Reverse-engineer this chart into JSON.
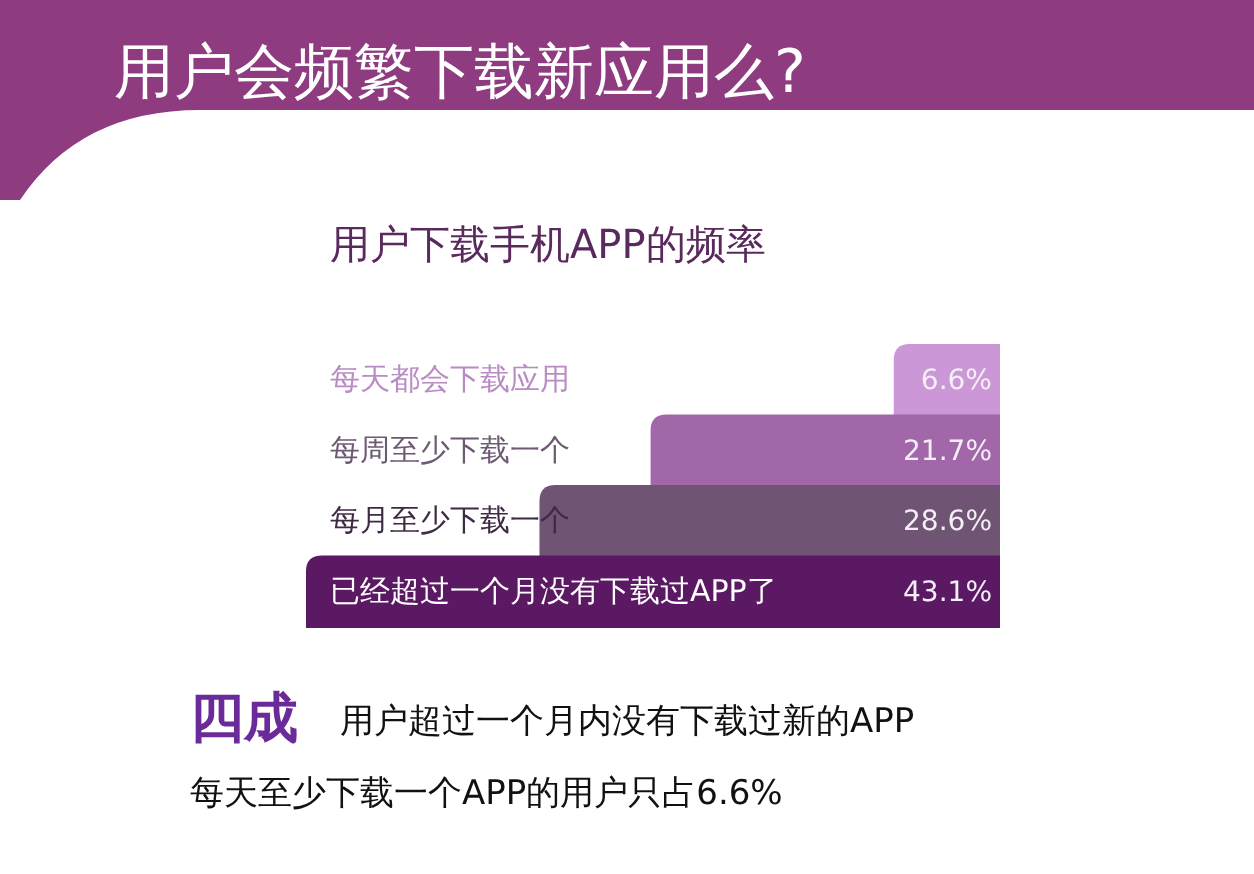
{
  "chart_data": {
    "type": "bar",
    "orientation": "horizontal",
    "title": "用户会频繁下载新应用么?",
    "subtitle": "用户下载手机APP的频率",
    "categories": [
      "每天都会下载应用",
      "每周至少下载一个",
      "每月至少下载一个",
      "已经超过一个月没有下载过APP了"
    ],
    "values": [
      6.6,
      21.7,
      28.6,
      43.1
    ],
    "value_labels": [
      "6.6%",
      "21.7%",
      "28.6%",
      "43.1%"
    ],
    "colors": [
      "#cc97d6",
      "#a267a8",
      "#6f5473",
      "#5c1963"
    ],
    "annotations": [
      "四成",
      "用户超过一个月内没有下载过新的APP",
      "每天至少下载一个APP的用户只占6.6%"
    ]
  }
}
